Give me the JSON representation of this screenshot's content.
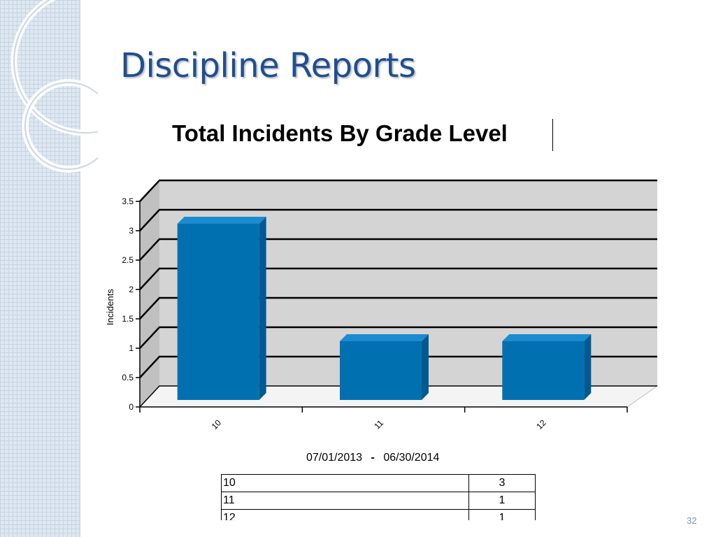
{
  "slide": {
    "title": "Discipline Reports",
    "page_number": "32"
  },
  "chart_data": {
    "type": "bar",
    "title": "Total Incidents By Grade Level",
    "categories": [
      "10",
      "11",
      "12"
    ],
    "values": [
      3,
      1,
      1
    ],
    "xlabel": "",
    "ylabel": "Incidents",
    "ylim": [
      0,
      3.5
    ],
    "yticks": [
      0,
      0.5,
      1,
      1.5,
      2,
      2.5,
      3,
      3.5
    ],
    "ytick_labels": [
      "0",
      "0.5",
      "1",
      "1.5",
      "2",
      "2.5",
      "3",
      "3.5"
    ],
    "grid": true,
    "style": "3d",
    "bar_color": "#0070b0",
    "date_range": {
      "start": "07/01/2013",
      "separator": "-",
      "end": "06/30/2014"
    }
  },
  "table": {
    "rows": [
      {
        "grade": "10",
        "count": "3"
      },
      {
        "grade": "11",
        "count": "1"
      },
      {
        "grade": "12",
        "count": "1"
      }
    ]
  }
}
